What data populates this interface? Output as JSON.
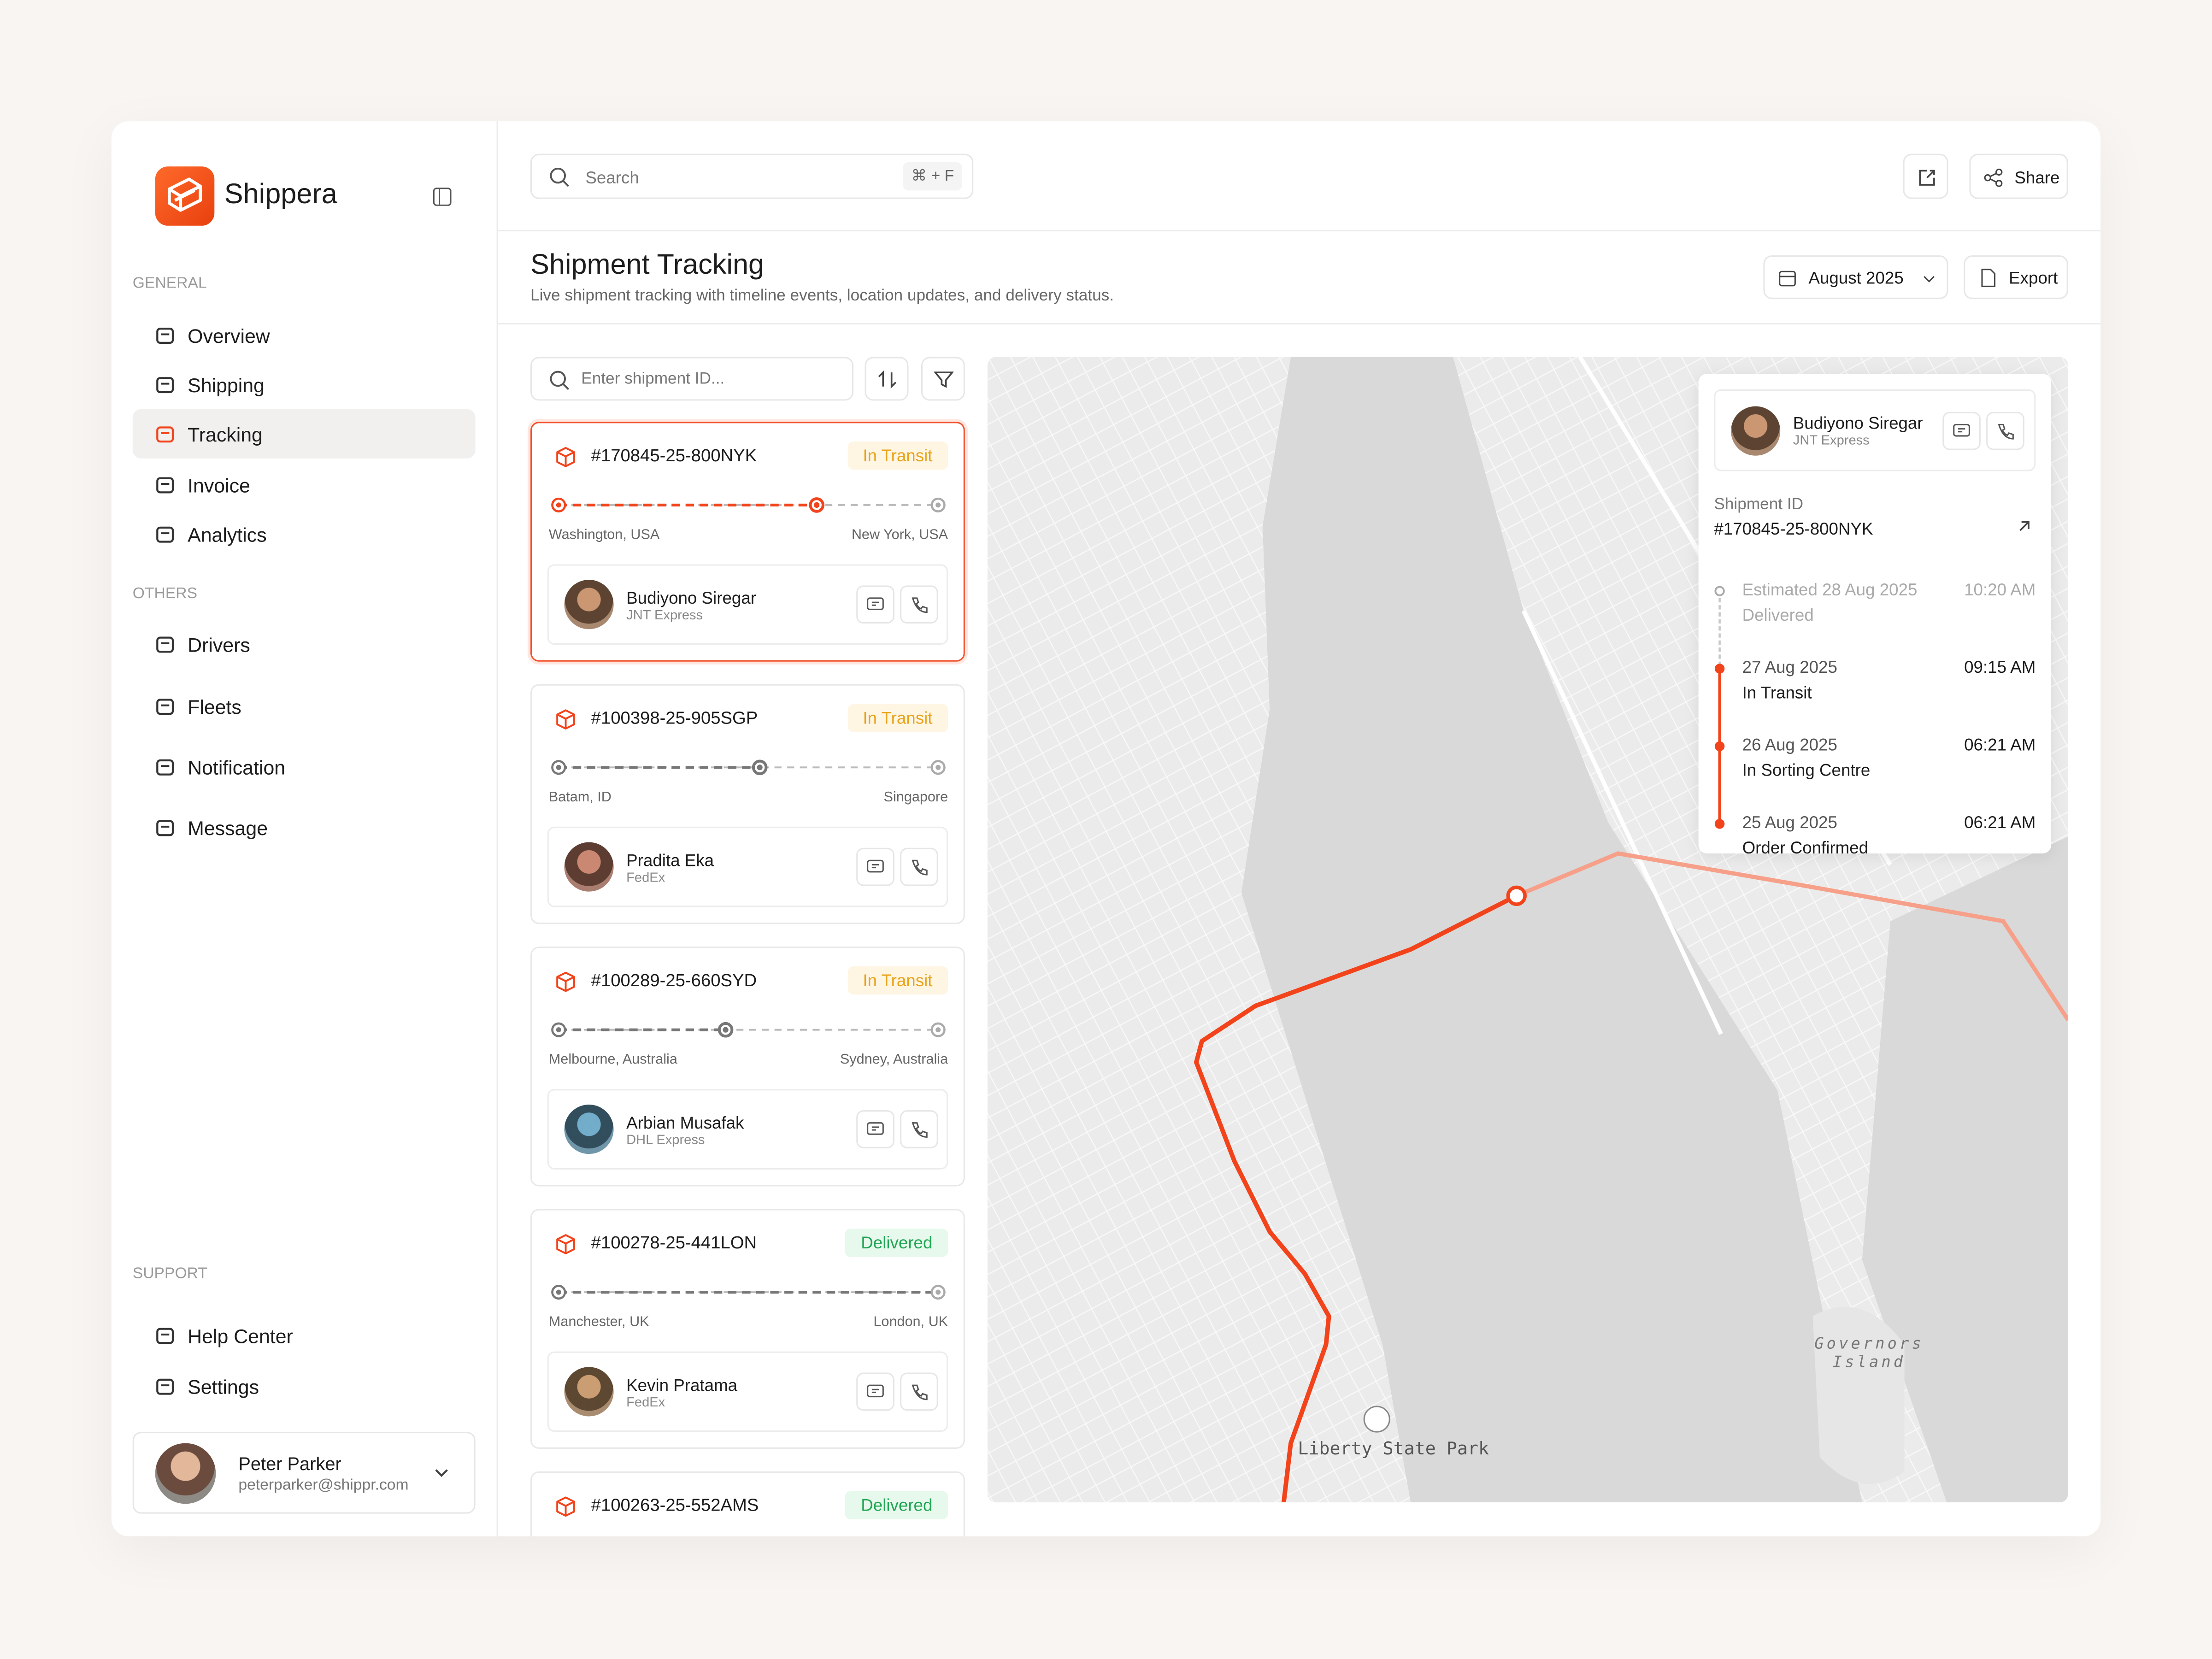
{
  "sidebar": {
    "brand": "Shippera",
    "sections": [
      {
        "title": "GENERAL",
        "items": [
          {
            "label": "Overview"
          },
          {
            "label": "Shipping"
          },
          {
            "label": "Tracking",
            "active": true
          },
          {
            "label": "Invoice"
          },
          {
            "label": "Analytics"
          }
        ]
      },
      {
        "title": "OTHERS",
        "items": [
          {
            "label": "Drivers"
          },
          {
            "label": "Fleets"
          },
          {
            "label": "Notification"
          },
          {
            "label": "Message"
          }
        ]
      },
      {
        "title": "SUPPORT",
        "items": [
          {
            "label": "Help Center"
          },
          {
            "label": "Settings"
          }
        ]
      }
    ],
    "user": {
      "name": "Peter Parker",
      "email": "peterparker@shippr.com"
    }
  },
  "topbar": {
    "search_placeholder": "Search",
    "shortcut": "⌘ + F",
    "share": "Share"
  },
  "header": {
    "title": "Shipment Tracking",
    "subtitle": "Live shipment tracking with timeline events, location updates, and delivery status.",
    "date": "August 2025",
    "export": "Export"
  },
  "shipments": {
    "search_placeholder": "Enter shipment ID...",
    "items": [
      {
        "id": "#170845-25-800NYK",
        "status": "In Transit",
        "status_color": "#e8a317",
        "status_bg": "#fff5e3",
        "from": "Washington, USA",
        "to": "New York, USA",
        "progress": 0.68,
        "selected": true,
        "driver": {
          "name": "Budiyono Siregar",
          "company": "JNT Express"
        }
      },
      {
        "id": "#100398-25-905SGP",
        "status": "In Transit",
        "status_color": "#e8a317",
        "status_bg": "#fff5e3",
        "from": "Batam, ID",
        "to": "Singapore",
        "progress": 0.53,
        "driver": {
          "name": "Pradita Eka",
          "company": "FedEx"
        }
      },
      {
        "id": "#100289-25-660SYD",
        "status": "In Transit",
        "status_color": "#e8a317",
        "status_bg": "#fff5e3",
        "from": "Melbourne, Australia",
        "to": "Sydney, Australia",
        "progress": 0.44,
        "driver": {
          "name": "Arbian Musafak",
          "company": "DHL Express"
        }
      },
      {
        "id": "#100278-25-441LON",
        "status": "Delivered",
        "status_color": "#1fa653",
        "status_bg": "#e7f8ec",
        "from": "Manchester, UK",
        "to": "London, UK",
        "progress": 1,
        "driver": {
          "name": "Kevin Pratama",
          "company": "FedEx"
        }
      },
      {
        "id": "#100263-25-552AMS",
        "status": "Delivered",
        "status_color": "#1fa653",
        "status_bg": "#e7f8ec"
      }
    ]
  },
  "map": {
    "labels": [
      "Liberty State Park",
      "Governors Island"
    ]
  },
  "detail": {
    "driver": {
      "name": "Budiyono Siregar",
      "company": "JNT Express"
    },
    "id_label": "Shipment ID",
    "id": "#170845-25-800NYK",
    "events": [
      {
        "date": "Estimated 28 Aug 2025",
        "time": "10:20 AM",
        "status": "Delivered",
        "done": false
      },
      {
        "date": "27 Aug 2025",
        "time": "09:15 AM",
        "status": "In Transit",
        "done": true
      },
      {
        "date": "26 Aug 2025",
        "time": "06:21 AM",
        "status": "In Sorting Centre",
        "done": true
      },
      {
        "date": "25 Aug 2025",
        "time": "06:21 AM",
        "status": "Order Confirmed",
        "done": true
      }
    ]
  }
}
